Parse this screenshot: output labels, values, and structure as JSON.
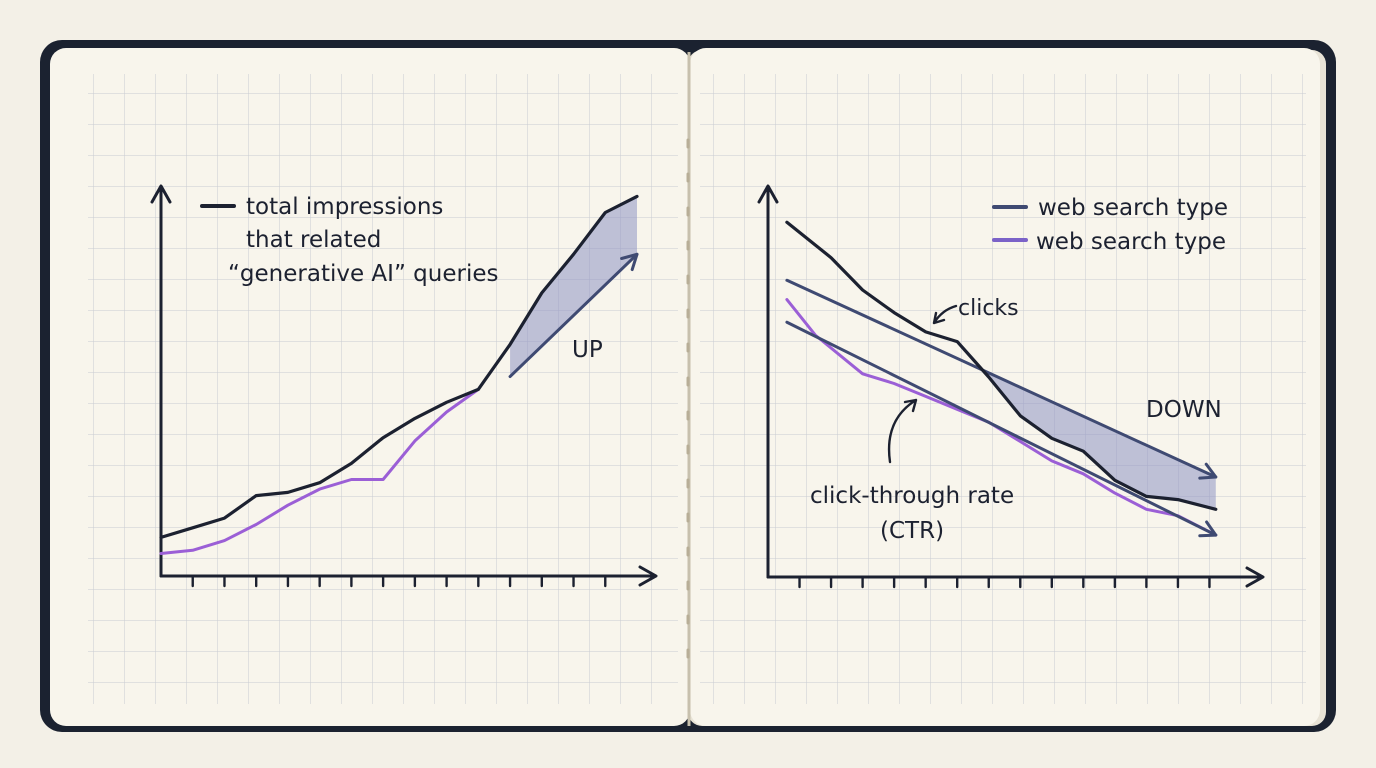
{
  "colors": {
    "cover": "#1b2230",
    "paper": "#f8f5ec",
    "grid": "#c9ccd2",
    "ink": "#1c2130",
    "navy": "#3f4a72",
    "purple": "#9b5fd6",
    "fill": "#8e93c4"
  },
  "chart_data": [
    {
      "type": "line",
      "title": "",
      "xlabel": "",
      "ylabel": "",
      "xlim": [
        0,
        15
      ],
      "ylim": [
        0,
        12
      ],
      "x_ticks": [
        1,
        2,
        3,
        4,
        5,
        6,
        7,
        8,
        9,
        10,
        11,
        12,
        13,
        14
      ],
      "legend": {
        "placement": "top-left",
        "lines": [
          "total impressions",
          "that related",
          "“generative AI” queries"
        ]
      },
      "annotation": "UP",
      "series": [
        {
          "name": "total impressions",
          "color": "#1c2130",
          "x": [
            0,
            1,
            2,
            3,
            4,
            5,
            6,
            7,
            8,
            9,
            10,
            11,
            12,
            13,
            14,
            15
          ],
          "y": [
            1.2,
            1.5,
            1.8,
            2.5,
            2.6,
            2.9,
            3.5,
            4.3,
            4.9,
            5.4,
            5.8,
            7.2,
            8.8,
            10.0,
            11.3,
            11.8
          ]
        },
        {
          "name": "",
          "color": "#9b5fd6",
          "x": [
            0,
            1,
            2,
            3,
            4,
            5,
            6,
            7,
            8,
            9,
            10
          ],
          "y": [
            0.7,
            0.8,
            1.1,
            1.6,
            2.2,
            2.7,
            3.0,
            3.0,
            4.2,
            5.1,
            5.8
          ]
        }
      ],
      "trend_arrow": {
        "x": [
          11,
          15
        ],
        "y": [
          6.2,
          10.0
        ]
      }
    },
    {
      "type": "line",
      "title": "",
      "xlabel": "",
      "ylabel": "",
      "xlim": [
        0,
        15
      ],
      "ylim": [
        0,
        12
      ],
      "x_ticks": [
        1,
        2,
        3,
        4,
        5,
        6,
        7,
        8,
        9,
        10,
        11,
        12,
        13,
        14
      ],
      "legend": {
        "placement": "top-right",
        "entries": [
          {
            "label": "web search type",
            "color": "#3f4a72"
          },
          {
            "label": "web search type",
            "color": "#7b62c8"
          }
        ]
      },
      "annotations": [
        "clicks",
        "click-through rate",
        "(CTR)",
        "DOWN"
      ],
      "series": [
        {
          "name": "clicks",
          "color": "#1c2130",
          "x": [
            0.6,
            2,
            3,
            4,
            5,
            6,
            7,
            8,
            9,
            10,
            11,
            12,
            13,
            14.2
          ],
          "y": [
            11.0,
            9.9,
            8.9,
            8.2,
            7.6,
            7.3,
            6.2,
            5.0,
            4.3,
            3.9,
            3.0,
            2.5,
            2.4,
            2.1
          ]
        },
        {
          "name": "click-through rate (CTR)",
          "color": "#9b5fd6",
          "x": [
            0.6,
            1.5,
            3,
            4,
            5,
            6,
            7,
            8,
            9,
            10,
            11,
            12,
            13,
            14.2
          ],
          "y": [
            8.6,
            7.5,
            6.3,
            6.0,
            5.6,
            5.2,
            4.8,
            4.2,
            3.6,
            3.2,
            2.6,
            2.1,
            1.9,
            1.3
          ]
        }
      ],
      "trend_lines": [
        {
          "color": "#3f4a72",
          "x": [
            0.6,
            14.2
          ],
          "y": [
            9.2,
            3.1
          ]
        },
        {
          "color": "#3f4a72",
          "x": [
            0.6,
            14.2
          ],
          "y": [
            7.9,
            1.3
          ]
        }
      ]
    }
  ]
}
